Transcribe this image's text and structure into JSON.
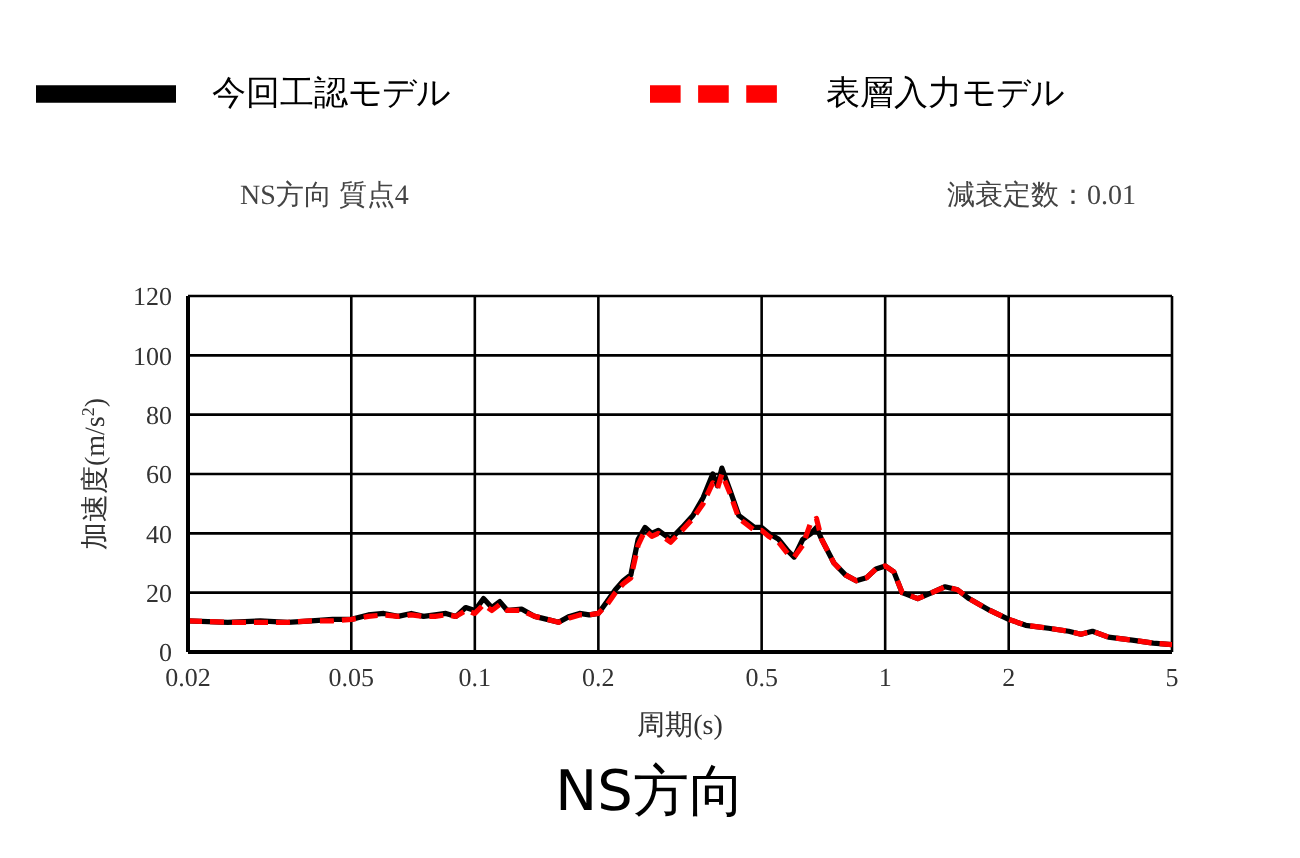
{
  "chart_data": {
    "type": "line",
    "title": "NS方向",
    "xlabel": "周期(s)",
    "ylabel": "加速度(m/s$^{2}$)",
    "annotations": [
      "NS方向 質点4",
      "減衰定数：0.01"
    ],
    "x": [
      0.02,
      0.025,
      0.03,
      0.035,
      0.04,
      0.045,
      0.05,
      0.055,
      0.06,
      0.065,
      0.07,
      0.075,
      0.08,
      0.085,
      0.09,
      0.095,
      0.1,
      0.105,
      0.11,
      0.115,
      0.12,
      0.13,
      0.14,
      0.15,
      0.16,
      0.17,
      0.18,
      0.19,
      0.2,
      0.21,
      0.22,
      0.23,
      0.24,
      0.25,
      0.26,
      0.27,
      0.28,
      0.3,
      0.32,
      0.34,
      0.36,
      0.38,
      0.39,
      0.4,
      0.42,
      0.44,
      0.46,
      0.48,
      0.5,
      0.52,
      0.55,
      0.58,
      0.6,
      0.63,
      0.66,
      0.68,
      0.7,
      0.75,
      0.8,
      0.85,
      0.9,
      0.95,
      1,
      1.05,
      1.1,
      1.2,
      1.3,
      1.4,
      1.5,
      1.6,
      1.8,
      2,
      2.2,
      2.5,
      2.8,
      3,
      3.2,
      3.5,
      4,
      4.5,
      5
    ],
    "series": [
      {
        "name": "今回工認モデル",
        "color": "#000000",
        "line_style": "solid",
        "values": [
          10.5,
          10,
          10.5,
          10,
          10.5,
          11,
          11,
          12.5,
          13,
          12,
          13,
          12,
          12.5,
          13,
          12,
          15,
          14,
          18,
          15,
          17,
          14,
          14.5,
          12,
          11,
          10,
          12,
          13,
          12.5,
          13,
          17,
          21,
          24,
          26,
          38,
          42,
          40,
          41,
          38,
          42,
          46,
          52,
          60,
          56,
          62,
          54,
          46,
          44,
          42,
          42,
          40,
          38,
          34,
          32,
          38,
          40,
          42,
          38,
          30,
          26,
          24,
          25,
          28,
          29,
          27,
          20,
          18,
          20,
          22,
          21,
          18,
          14,
          11,
          9,
          8,
          7,
          6,
          7,
          5,
          4,
          3,
          2.5
        ]
      },
      {
        "name": "表層入力モデル",
        "color": "#ff0000",
        "line_style": "dashed",
        "values": [
          10.5,
          10,
          10,
          10,
          10.5,
          10.5,
          11,
          12,
          12.5,
          12,
          12.5,
          12,
          12,
          12.5,
          12,
          14,
          13,
          16,
          14,
          16,
          14,
          14,
          12,
          11,
          10,
          11.5,
          12.5,
          12.5,
          13,
          16,
          20,
          23,
          25,
          36,
          41,
          39,
          40,
          37,
          41,
          45,
          50,
          57,
          55,
          60,
          53,
          45,
          43,
          41,
          41,
          39,
          37,
          33,
          32,
          36,
          44,
          45,
          38,
          30,
          26,
          24,
          25,
          28,
          29,
          27,
          20,
          18,
          20,
          22,
          21,
          18,
          14,
          11,
          9,
          8,
          7,
          6,
          7,
          5,
          4,
          3,
          2.5
        ]
      }
    ],
    "xlim": [
      0.02,
      5
    ],
    "xticks": [
      0.02,
      0.05,
      0.1,
      0.2,
      0.5,
      1,
      2,
      5
    ],
    "log": "x",
    "ylim": [
      0,
      120
    ],
    "yticks": [
      0,
      20,
      40,
      60,
      80,
      100,
      120
    ],
    "grid": true,
    "legend": "top",
    "marker": "none"
  }
}
